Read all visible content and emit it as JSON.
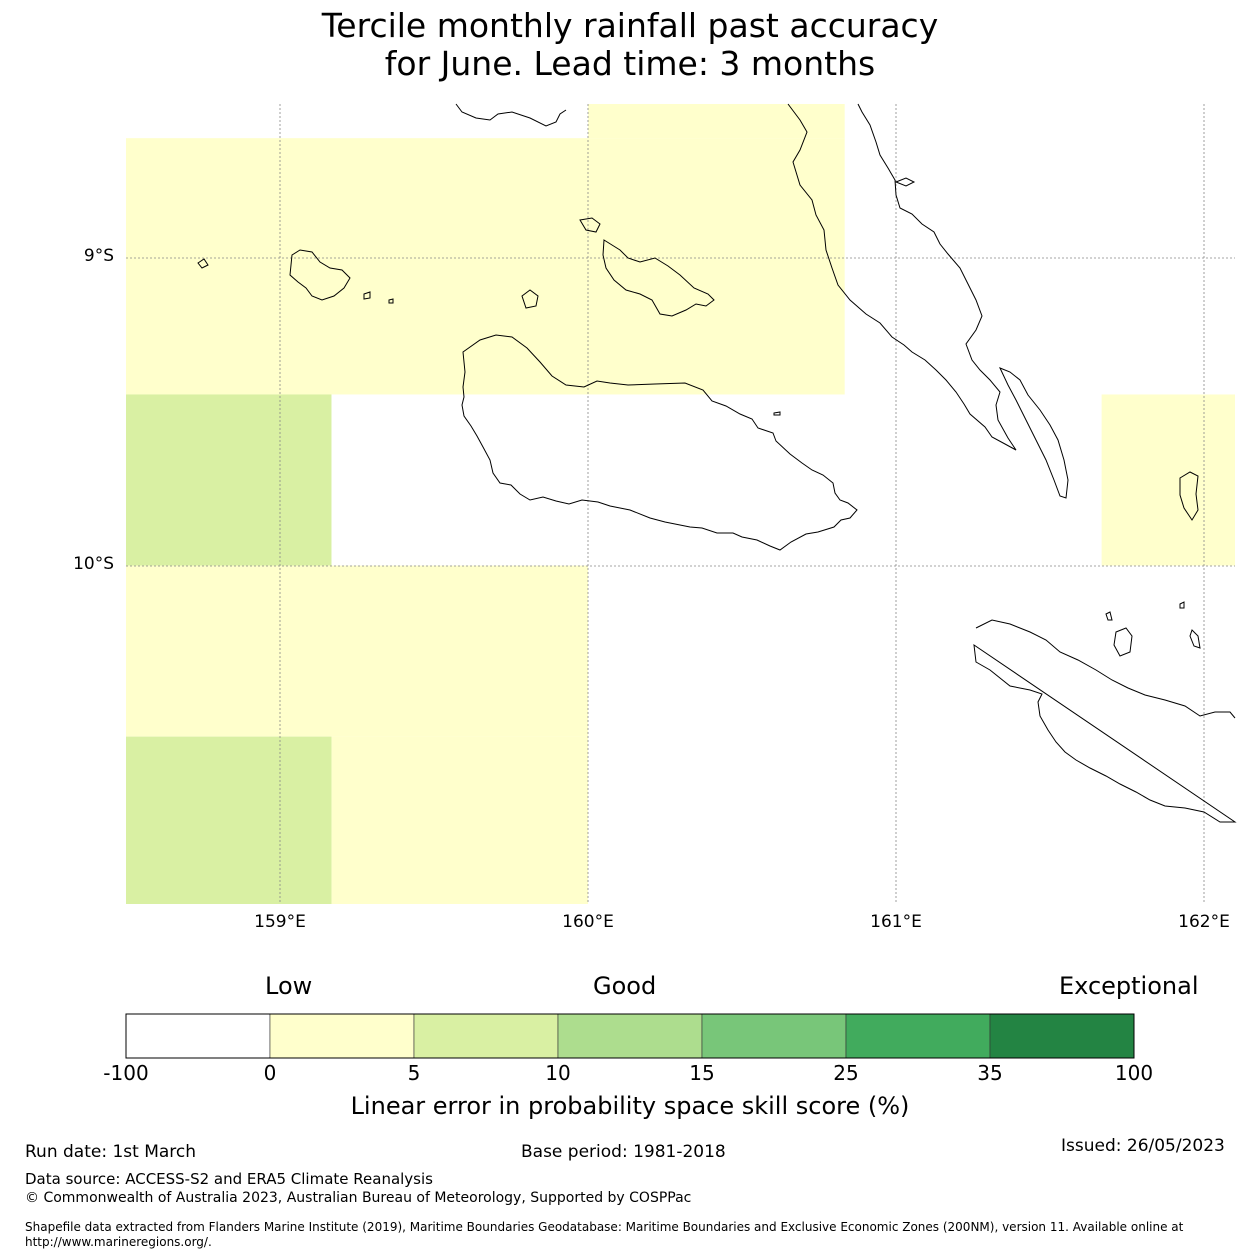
{
  "title": {
    "line1": "Tercile monthly rainfall past accuracy",
    "line2": "for June. Lead time: 3 months"
  },
  "map": {
    "lat_labels": [
      "9°S",
      "10°S"
    ],
    "lon_labels": [
      "159°E",
      "160°E",
      "161°E",
      "162°E"
    ],
    "extent": {
      "lon_min": 158.5,
      "lon_max": 162.1,
      "lat_max": -8.5,
      "lat_min": -11.1
    },
    "cells": [
      {
        "lon0": 160.0,
        "lon1": 160.833,
        "lat_top": -8.5,
        "lat_bot": -8.611,
        "category": "0-5"
      },
      {
        "lon0": 158.5,
        "lon1": 160.833,
        "lat_top": -8.611,
        "lat_bot": -9.444,
        "category": "0-5"
      },
      {
        "lon0": 158.5,
        "lon1": 159.167,
        "lat_top": -9.444,
        "lat_bot": -10.0,
        "category": "5-10"
      },
      {
        "lon0": 161.667,
        "lon1": 162.1,
        "lat_top": -9.444,
        "lat_bot": -10.0,
        "category": "0-5"
      },
      {
        "lon0": 158.5,
        "lon1": 160.0,
        "lat_top": -10.0,
        "lat_bot": -10.556,
        "category": "0-5"
      },
      {
        "lon0": 159.167,
        "lon1": 160.0,
        "lat_top": -10.556,
        "lat_bot": -11.1,
        "category": "0-5"
      },
      {
        "lon0": 158.5,
        "lon1": 159.167,
        "lat_top": -10.556,
        "lat_bot": -11.1,
        "category": "5-10"
      }
    ]
  },
  "colorbar": {
    "categories": [
      "Low",
      "Good",
      "Exceptional"
    ],
    "ticks": [
      "-100",
      "0",
      "5",
      "10",
      "15",
      "25",
      "35",
      "100"
    ],
    "colors": [
      "#ffffff",
      "#ffffcc",
      "#d9f0a3",
      "#addd8e",
      "#78c679",
      "#41ab5d",
      "#238443"
    ],
    "label": "Linear error in probability space skill score (%)"
  },
  "footer": {
    "run_date": "Run date: 1st March",
    "base_period": "Base period: 1981-2018",
    "issued": "Issued: 26/05/2023",
    "data_source": "Data source: ACCESS-S2 and ERA5 Climate Reanalysis",
    "copyright": "© Commonwealth of Australia 2023, Australian Bureau of Meteorology, Supported by COSPPac",
    "shapefile": "Shapefile data extracted from Flanders Marine Institute (2019), Maritime Boundaries Geodatabase: Maritime Boundaries and Exclusive Economic Zones (200NM), version 11. Available online at http://www.marineregions.org/."
  }
}
